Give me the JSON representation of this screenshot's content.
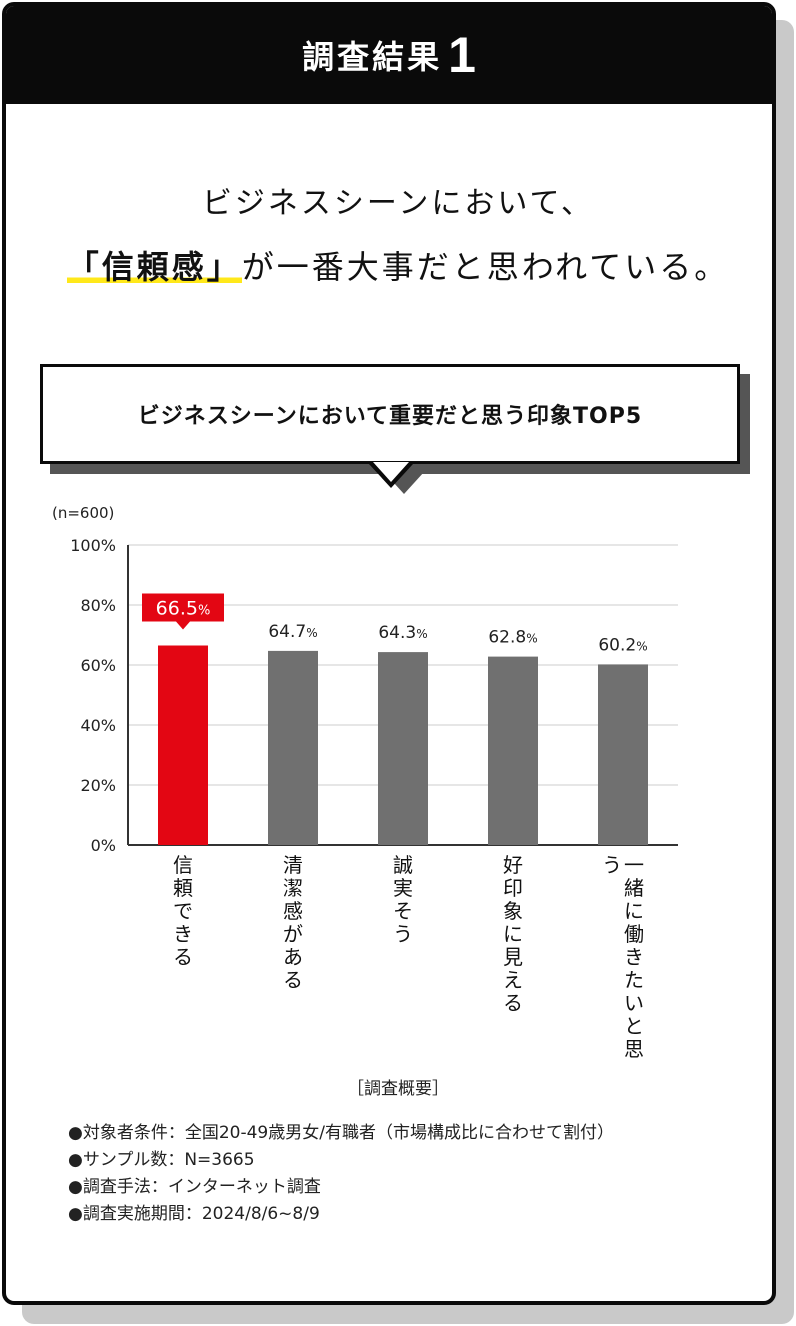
{
  "header": {
    "title": "調査結果",
    "number": "1"
  },
  "headline": {
    "line1": "ビジネスシーンにおいて、",
    "line2_highlight": "「信頼感」",
    "line2_rest": "が一番大事だと思われている。"
  },
  "chart_title": "ビジネスシーンにおいて重要だと思う印象TOP5",
  "chart_data": {
    "type": "bar",
    "n_label": "(n=600)",
    "categories": [
      "信頼できる",
      "清潔感がある",
      "誠実そう",
      "好印象に見える",
      "一緒に働きたいと思う"
    ],
    "values": [
      66.5,
      64.7,
      64.3,
      62.8,
      60.2
    ],
    "value_labels": [
      "66.5",
      "64.7",
      "64.3",
      "62.8",
      "60.2"
    ],
    "value_unit": "%",
    "ylim": [
      0,
      100
    ],
    "yticks": [
      0,
      20,
      40,
      60,
      80,
      100
    ],
    "ytick_labels": [
      "0%",
      "20%",
      "40%",
      "60%",
      "80%",
      "100%"
    ],
    "grid": true,
    "colors": {
      "highlight": "#e30613",
      "default": "#707070",
      "grid": "#cccccc",
      "axis": "#333333"
    }
  },
  "survey": {
    "heading": "［調査概要］",
    "notes": [
      "●対象者条件：全国20-49歳男女/有職者（市場構成比に合わせて割付）",
      "●サンプル数：N=3665",
      "●調査手法：インターネット調査",
      "●調査実施期間：2024/8/6~8/9"
    ]
  }
}
